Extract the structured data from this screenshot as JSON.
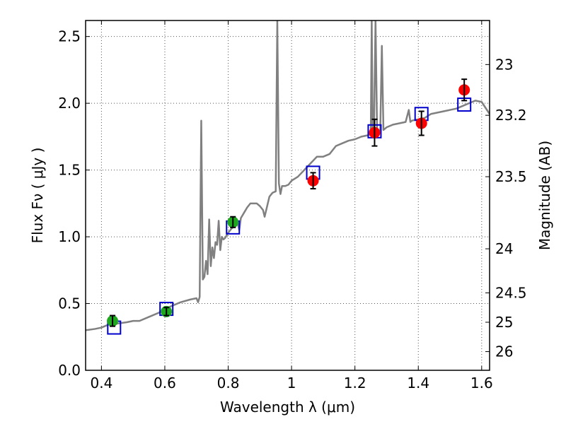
{
  "chart_data": {
    "type": "scatter",
    "title": "",
    "xlabel": "Wavelength  λ (μm)",
    "ylabel": "Flux  Fν  ( μJy )",
    "y2label": "Magnitude (AB)",
    "xlim": [
      0.35,
      1.625
    ],
    "ylim": [
      0.0,
      2.62
    ],
    "grid": true,
    "x_ticks": [
      0.4,
      0.6,
      0.8,
      1.0,
      1.2,
      1.4,
      1.6
    ],
    "x_tick_labels": [
      "0.4",
      "0.6",
      "0.8",
      "1",
      "1.2",
      "1.4",
      "1.6"
    ],
    "y_ticks": [
      0.0,
      0.5,
      1.0,
      1.5,
      2.0,
      2.5
    ],
    "y_tick_labels": [
      "0.0",
      "0.5",
      "1.0",
      "1.5",
      "2.0",
      "2.5"
    ],
    "y2_ticks": [
      {
        "label": "23",
        "flux": 2.29
      },
      {
        "label": "23.2",
        "flux": 1.91
      },
      {
        "label": "23.5",
        "flux": 1.45
      },
      {
        "label": "24",
        "flux": 0.91
      },
      {
        "label": "24.5",
        "flux": 0.58
      },
      {
        "label": "25",
        "flux": 0.36
      },
      {
        "label": "26",
        "flux": 0.14
      }
    ],
    "colors": {
      "spectrum": "#808080",
      "model_box": "#0000cc",
      "optical_point": "#1fa81f",
      "nir_point": "#ff0000",
      "errorbar": "#000000",
      "grid": "#555555"
    },
    "series": [
      {
        "name": "model spectrum",
        "kind": "line",
        "points": [
          [
            0.35,
            0.3
          ],
          [
            0.38,
            0.31
          ],
          [
            0.4,
            0.32
          ],
          [
            0.42,
            0.34
          ],
          [
            0.45,
            0.35
          ],
          [
            0.48,
            0.36
          ],
          [
            0.5,
            0.37
          ],
          [
            0.52,
            0.37
          ],
          [
            0.55,
            0.4
          ],
          [
            0.58,
            0.43
          ],
          [
            0.6,
            0.46
          ],
          [
            0.62,
            0.48
          ],
          [
            0.65,
            0.51
          ],
          [
            0.68,
            0.53
          ],
          [
            0.7,
            0.54
          ],
          [
            0.705,
            0.51
          ],
          [
            0.71,
            0.55
          ],
          [
            0.715,
            1.87
          ],
          [
            0.72,
            0.68
          ],
          [
            0.725,
            0.7
          ],
          [
            0.73,
            0.82
          ],
          [
            0.735,
            0.72
          ],
          [
            0.74,
            1.13
          ],
          [
            0.745,
            0.78
          ],
          [
            0.75,
            0.92
          ],
          [
            0.755,
            0.84
          ],
          [
            0.76,
            0.96
          ],
          [
            0.765,
            0.94
          ],
          [
            0.77,
            1.12
          ],
          [
            0.775,
            0.9
          ],
          [
            0.78,
            1.0
          ],
          [
            0.785,
            0.98
          ],
          [
            0.79,
            0.99
          ],
          [
            0.8,
            1.03
          ],
          [
            0.81,
            1.06
          ],
          [
            0.82,
            1.08
          ],
          [
            0.83,
            1.1
          ],
          [
            0.835,
            1.05
          ],
          [
            0.84,
            1.14
          ],
          [
            0.85,
            1.18
          ],
          [
            0.86,
            1.22
          ],
          [
            0.87,
            1.25
          ],
          [
            0.88,
            1.25
          ],
          [
            0.89,
            1.25
          ],
          [
            0.9,
            1.23
          ],
          [
            0.91,
            1.2
          ],
          [
            0.915,
            1.15
          ],
          [
            0.92,
            1.2
          ],
          [
            0.93,
            1.3
          ],
          [
            0.94,
            1.33
          ],
          [
            0.95,
            1.34
          ],
          [
            0.955,
            2.62
          ],
          [
            0.96,
            1.4
          ],
          [
            0.965,
            1.32
          ],
          [
            0.97,
            1.38
          ],
          [
            0.98,
            1.38
          ],
          [
            0.99,
            1.39
          ],
          [
            1.0,
            1.42
          ],
          [
            1.02,
            1.45
          ],
          [
            1.04,
            1.5
          ],
          [
            1.06,
            1.55
          ],
          [
            1.08,
            1.6
          ],
          [
            1.1,
            1.6
          ],
          [
            1.12,
            1.62
          ],
          [
            1.14,
            1.68
          ],
          [
            1.16,
            1.7
          ],
          [
            1.18,
            1.72
          ],
          [
            1.2,
            1.73
          ],
          [
            1.22,
            1.75
          ],
          [
            1.24,
            1.76
          ],
          [
            1.25,
            1.77
          ],
          [
            1.253,
            2.62
          ],
          [
            1.256,
            1.77
          ],
          [
            1.26,
            1.79
          ],
          [
            1.265,
            2.62
          ],
          [
            1.27,
            1.78
          ],
          [
            1.28,
            1.8
          ],
          [
            1.285,
            2.43
          ],
          [
            1.29,
            1.8
          ],
          [
            1.3,
            1.82
          ],
          [
            1.32,
            1.84
          ],
          [
            1.34,
            1.85
          ],
          [
            1.36,
            1.86
          ],
          [
            1.37,
            1.95
          ],
          [
            1.375,
            1.86
          ],
          [
            1.38,
            1.87
          ],
          [
            1.4,
            1.88
          ],
          [
            1.42,
            1.89
          ],
          [
            1.44,
            1.92
          ],
          [
            1.46,
            1.93
          ],
          [
            1.48,
            1.94
          ],
          [
            1.5,
            1.95
          ],
          [
            1.52,
            1.96
          ],
          [
            1.54,
            1.98
          ],
          [
            1.56,
            2.0
          ],
          [
            1.58,
            2.02
          ],
          [
            1.6,
            2.01
          ],
          [
            1.625,
            1.92
          ]
        ]
      },
      {
        "name": "model photometry",
        "kind": "open-square",
        "points": [
          [
            0.44,
            0.32
          ],
          [
            0.605,
            0.46
          ],
          [
            0.815,
            1.07
          ],
          [
            1.068,
            1.48
          ],
          [
            1.262,
            1.79
          ],
          [
            1.41,
            1.92
          ],
          [
            1.545,
            1.99
          ]
        ]
      },
      {
        "name": "optical photometry",
        "kind": "filled-circle",
        "points": [
          {
            "x": 0.435,
            "y": 0.37,
            "err": 0.04
          },
          {
            "x": 0.605,
            "y": 0.44,
            "err": 0.03
          },
          {
            "x": 0.815,
            "y": 1.11,
            "err": 0.04
          }
        ]
      },
      {
        "name": "near-IR photometry",
        "kind": "filled-circle",
        "points": [
          {
            "x": 1.068,
            "y": 1.42,
            "err": 0.06
          },
          {
            "x": 1.262,
            "y": 1.78,
            "err": 0.1
          },
          {
            "x": 1.41,
            "y": 1.85,
            "err": 0.09
          },
          {
            "x": 1.545,
            "y": 2.1,
            "err": 0.08
          }
        ]
      }
    ]
  }
}
